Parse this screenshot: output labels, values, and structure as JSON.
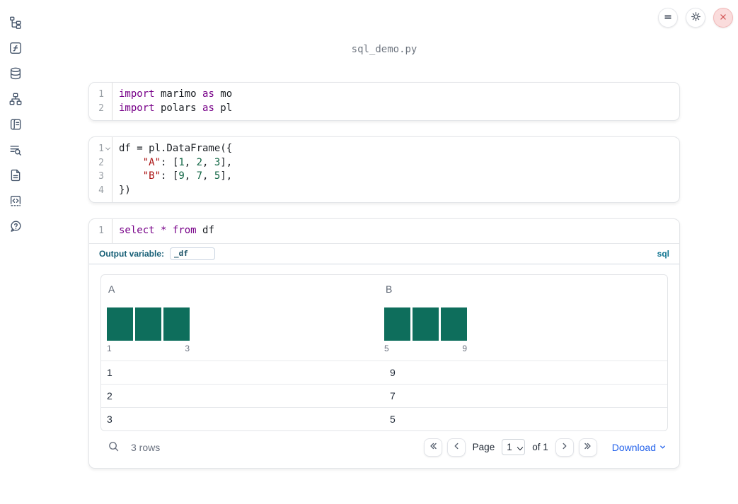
{
  "window": {
    "filename": "sql_demo.py"
  },
  "topbar": {
    "menu_button": {
      "icon": "hamburger-menu-icon"
    },
    "settings_button": {
      "icon": "gear-icon"
    },
    "shutdown_button": {
      "icon": "close-icon"
    }
  },
  "sidebar": {
    "items": [
      {
        "icon": "file-explorer-tree-icon"
      },
      {
        "icon": "function-square-icon"
      },
      {
        "icon": "datasources-database-icon"
      },
      {
        "icon": "dependency-graph-icon"
      },
      {
        "icon": "scratchpad-scroll-icon"
      },
      {
        "icon": "logs-search-icon"
      },
      {
        "icon": "documentation-file-icon"
      },
      {
        "icon": "snippets-code-icon"
      },
      {
        "icon": "help-question-bubble-icon"
      }
    ]
  },
  "editor": {
    "cells": [
      {
        "type": "python",
        "lines": [
          {
            "num": "1",
            "tokens": [
              [
                "kw",
                "import"
              ],
              [
                "pl",
                " marimo "
              ],
              [
                "kw",
                "as"
              ],
              [
                "pl",
                " mo"
              ]
            ]
          },
          {
            "num": "2",
            "tokens": [
              [
                "kw",
                "import"
              ],
              [
                "pl",
                " polars "
              ],
              [
                "kw",
                "as"
              ],
              [
                "pl",
                " pl"
              ]
            ]
          }
        ]
      },
      {
        "type": "python",
        "lines": [
          {
            "num": "1",
            "fold": true,
            "tokens": [
              [
                "pl",
                "df = pl.DataFrame({"
              ]
            ]
          },
          {
            "num": "2",
            "tokens": [
              [
                "pl",
                "    "
              ],
              [
                "str",
                "\"A\""
              ],
              [
                "pl",
                ": ["
              ],
              [
                "num",
                "1"
              ],
              [
                "pl",
                ", "
              ],
              [
                "num",
                "2"
              ],
              [
                "pl",
                ", "
              ],
              [
                "num",
                "3"
              ],
              [
                "pl",
                "],"
              ]
            ]
          },
          {
            "num": "3",
            "tokens": [
              [
                "pl",
                "    "
              ],
              [
                "str",
                "\"B\""
              ],
              [
                "pl",
                ": ["
              ],
              [
                "num",
                "9"
              ],
              [
                "pl",
                ", "
              ],
              [
                "num",
                "7"
              ],
              [
                "pl",
                ", "
              ],
              [
                "num",
                "5"
              ],
              [
                "pl",
                "],"
              ]
            ]
          },
          {
            "num": "4",
            "tokens": [
              [
                "pl",
                "})"
              ]
            ]
          }
        ]
      },
      {
        "type": "sql",
        "lines": [
          {
            "num": "1",
            "tokens": [
              [
                "kw",
                "select"
              ],
              [
                "pl",
                " "
              ],
              [
                "op",
                "*"
              ],
              [
                "pl",
                " "
              ],
              [
                "kw",
                "from"
              ],
              [
                "pl",
                " df"
              ]
            ]
          }
        ],
        "output_variable_label": "Output variable:",
        "output_variable_value": "_df",
        "language_badge": "sql"
      }
    ]
  },
  "table": {
    "columns": [
      {
        "name": "A",
        "histogram": {
          "type": "bar",
          "bars": [
            1,
            1,
            1
          ],
          "min_label": "1",
          "max_label": "3"
        }
      },
      {
        "name": "B",
        "histogram": {
          "type": "bar",
          "bars": [
            1,
            1,
            1
          ],
          "min_label": "5",
          "max_label": "9"
        }
      }
    ],
    "rows": [
      [
        "1",
        "9"
      ],
      [
        "2",
        "7"
      ],
      [
        "3",
        "5"
      ]
    ],
    "footer": {
      "row_count": "3 rows",
      "page_label": "Page",
      "page_value": "1",
      "of_label": "of 1",
      "download_label": "Download"
    }
  },
  "colors": {
    "keyword": "#770088",
    "string": "#aa1111",
    "number": "#116644",
    "histogram_bar": "#0e6e5c",
    "accent_teal": "#155e75",
    "sql_badge": "#0e7490",
    "link_blue": "#2563eb",
    "shutdown_red": "#d25656"
  }
}
